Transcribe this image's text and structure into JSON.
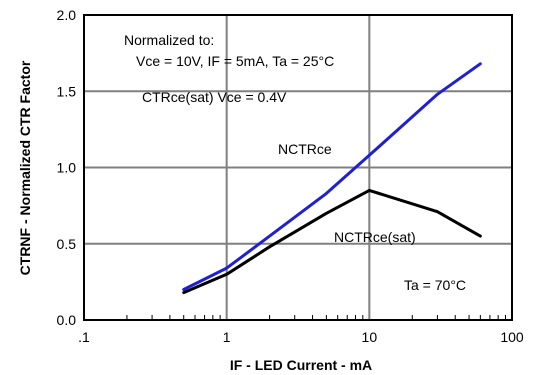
{
  "chart_data": {
    "type": "line",
    "xlabel": "IF - LED Current - mA",
    "ylabel": "CTRNF - Normalized CTR Factor",
    "x_scale": "log",
    "xlim": [
      0.1,
      100
    ],
    "ylim": [
      0.0,
      2.0
    ],
    "x_ticks": [
      ".1",
      "1",
      "10",
      "100"
    ],
    "y_ticks": [
      "0.0",
      "0.5",
      "1.0",
      "1.5",
      "2.0"
    ],
    "grid": true,
    "series": [
      {
        "name": "NCTRce",
        "color": "#1f1fd6",
        "x": [
          0.5,
          1,
          2,
          5,
          10,
          30,
          60
        ],
        "y": [
          0.2,
          0.34,
          0.55,
          0.83,
          1.08,
          1.48,
          1.68
        ]
      },
      {
        "name": "NCTRce(sat)",
        "color": "#000000",
        "x": [
          0.5,
          1,
          2,
          5,
          10,
          30,
          60
        ],
        "y": [
          0.18,
          0.3,
          0.48,
          0.7,
          0.85,
          0.71,
          0.55
        ]
      }
    ],
    "annotations": [
      "Normalized to:",
      "Vce = 10V, IF = 5mA, Ta = 25°C",
      "CTRce(sat) Vce = 0.4V",
      "NCTRce",
      "NCTRce(sat)",
      "Ta = 70°C"
    ]
  }
}
